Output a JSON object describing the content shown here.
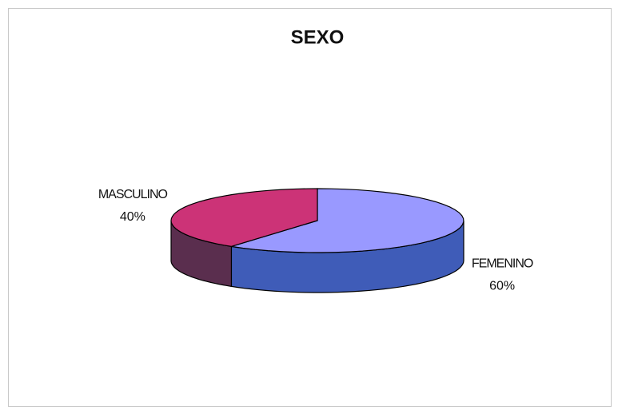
{
  "chart_data": {
    "type": "pie",
    "title": "SEXO",
    "categories": [
      "FEMENINO",
      "MASCULINO"
    ],
    "values": [
      60,
      40
    ],
    "value_labels": [
      "60%",
      "40%"
    ],
    "colors": [
      "#9999ff",
      "#cc3377"
    ],
    "side_colors": [
      "#3f5cb8",
      "#5a2e4e"
    ]
  }
}
